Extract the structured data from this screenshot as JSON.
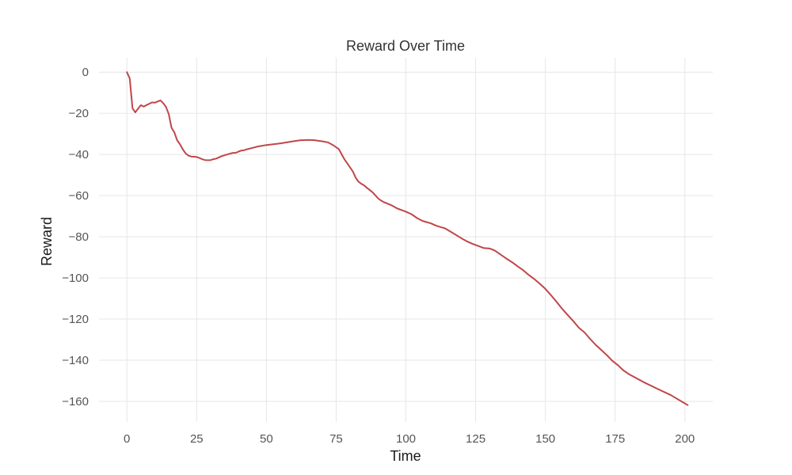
{
  "chart_data": {
    "type": "line",
    "title": "Reward Over Time",
    "xlabel": "Time",
    "ylabel": "Reward",
    "xlim": [
      -10,
      210
    ],
    "ylim": [
      -170,
      7
    ],
    "xticks": [
      0,
      25,
      50,
      75,
      100,
      125,
      150,
      175,
      200
    ],
    "yticks": [
      0,
      -20,
      -40,
      -60,
      -80,
      -100,
      -120,
      -140,
      -160
    ],
    "grid": true,
    "legend": "none",
    "series": [
      {
        "color": "#c0464a",
        "x": [
          0,
          1,
          2,
          3,
          5,
          6,
          7,
          9,
          10,
          12,
          13,
          14,
          15,
          16,
          17,
          18,
          19,
          20,
          21,
          22,
          23,
          25,
          26,
          27,
          28,
          29,
          30,
          31,
          32,
          34,
          36,
          38,
          39,
          40,
          41,
          42,
          43,
          45,
          47,
          50,
          55,
          60,
          62,
          65,
          67,
          70,
          72,
          74,
          76,
          77,
          78,
          79,
          80,
          81,
          82,
          83,
          84,
          85,
          86,
          88,
          89,
          90,
          91,
          92,
          95,
          97,
          100,
          102,
          104,
          106,
          107,
          109,
          111,
          114,
          116,
          120,
          122,
          124,
          126,
          128,
          130,
          131,
          132,
          134,
          136,
          138,
          140,
          142,
          144,
          146,
          148,
          150,
          152,
          154,
          156,
          158,
          160,
          162,
          164,
          166,
          168,
          170,
          172,
          174,
          176,
          178,
          180,
          185,
          190,
          195,
          201
        ],
        "y": [
          0,
          -3,
          -17.5,
          -19.5,
          -16,
          -16.7,
          -16,
          -14.7,
          -14.8,
          -13.7,
          -15,
          -16.8,
          -20.4,
          -27,
          -29.2,
          -33,
          -35,
          -37.4,
          -39.4,
          -40.5,
          -41,
          -41.2,
          -41.7,
          -42.3,
          -42.7,
          -42.8,
          -42.7,
          -42.3,
          -42,
          -40.8,
          -40,
          -39.2,
          -39.2,
          -38.6,
          -38.1,
          -37.9,
          -37.5,
          -36.8,
          -36.1,
          -35.4,
          -34.6,
          -33.5,
          -33.1,
          -32.9,
          -33,
          -33.6,
          -34.1,
          -35.5,
          -37.5,
          -40,
          -42.4,
          -44.3,
          -46.3,
          -48.3,
          -51.3,
          -53.2,
          -54.2,
          -55,
          -56.2,
          -58.3,
          -59.8,
          -61.3,
          -62.3,
          -63.1,
          -64.8,
          -66.3,
          -67.8,
          -69,
          -70.9,
          -72.3,
          -72.7,
          -73.5,
          -74.7,
          -75.9,
          -77.5,
          -80.8,
          -82.3,
          -83.5,
          -84.5,
          -85.5,
          -85.7,
          -86.2,
          -86.8,
          -88.7,
          -90.6,
          -92.3,
          -94.3,
          -96.2,
          -98.5,
          -100.5,
          -102.8,
          -105.3,
          -108.4,
          -111.6,
          -115,
          -118,
          -121,
          -124.2,
          -126.5,
          -129.6,
          -132.5,
          -135,
          -137.5,
          -140.3,
          -142.4,
          -145,
          -146.8,
          -150.5,
          -153.8,
          -157,
          -161.8
        ]
      }
    ]
  }
}
